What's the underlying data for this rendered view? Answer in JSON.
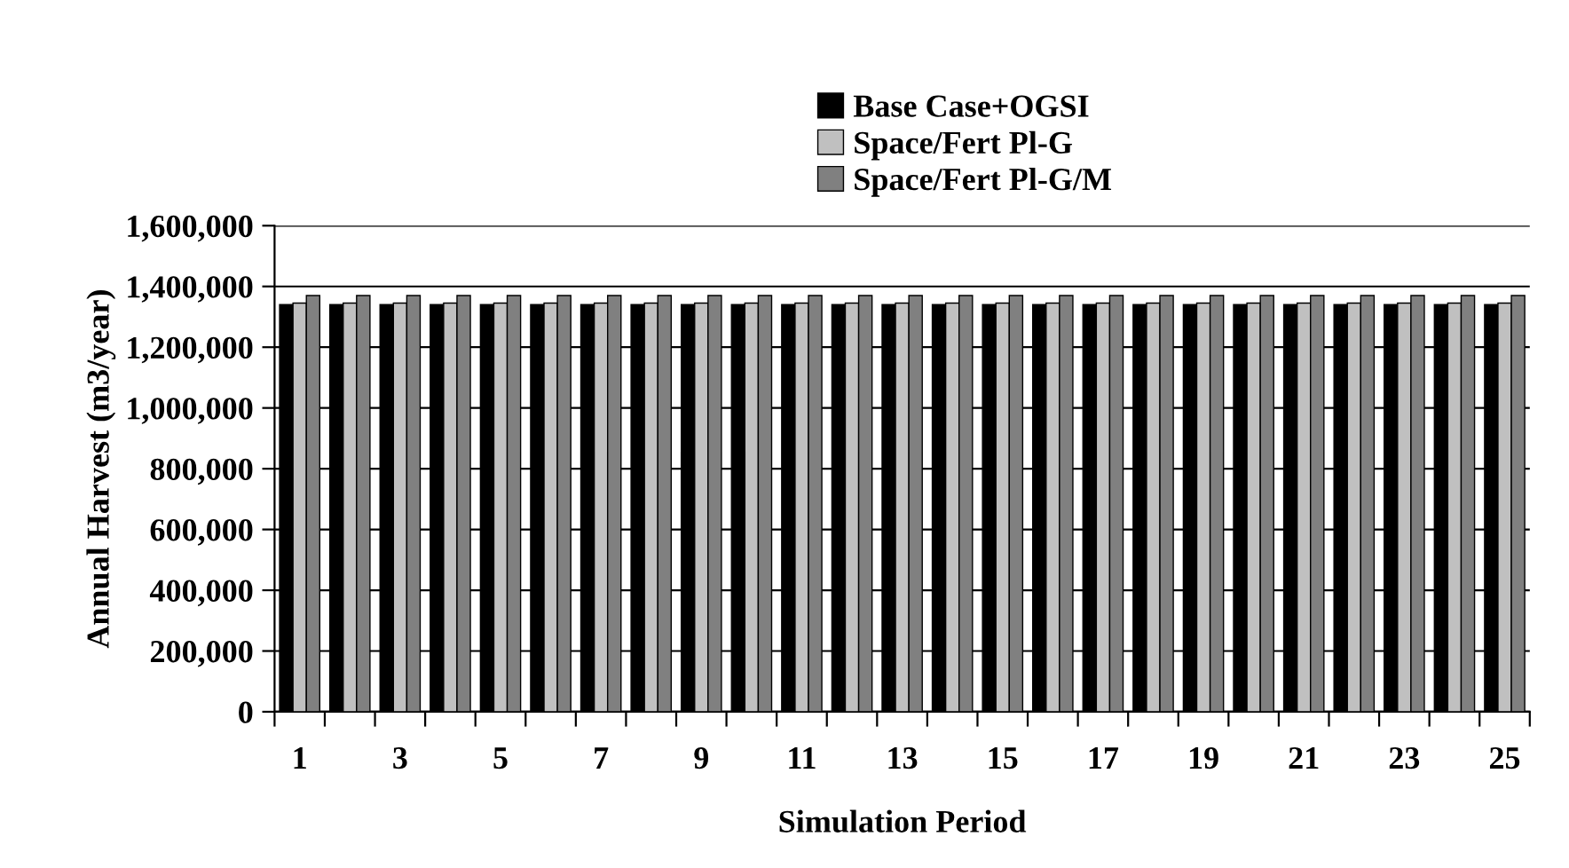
{
  "chart_data": {
    "type": "bar",
    "xlabel": "Simulation Period",
    "ylabel": "Annual Harvest (m3/year)",
    "categories": [
      "1",
      null,
      "3",
      null,
      "5",
      null,
      "7",
      null,
      "9",
      null,
      "11",
      null,
      "13",
      null,
      "15",
      null,
      "17",
      null,
      "19",
      null,
      "21",
      null,
      "23",
      null,
      "25"
    ],
    "series": [
      {
        "name": "Base Case+OGSI",
        "color": "#000000",
        "values": [
          1340000,
          1340000,
          1340000,
          1340000,
          1340000,
          1340000,
          1340000,
          1340000,
          1340000,
          1340000,
          1340000,
          1340000,
          1340000,
          1340000,
          1340000,
          1340000,
          1340000,
          1340000,
          1340000,
          1340000,
          1340000,
          1340000,
          1340000,
          1340000,
          1340000
        ]
      },
      {
        "name": "Space/Fert Pl-G",
        "color": "#c0c0c0",
        "values": [
          1345000,
          1345000,
          1345000,
          1345000,
          1345000,
          1345000,
          1345000,
          1345000,
          1345000,
          1345000,
          1345000,
          1345000,
          1345000,
          1345000,
          1345000,
          1345000,
          1345000,
          1345000,
          1345000,
          1345000,
          1345000,
          1345000,
          1345000,
          1345000,
          1345000
        ]
      },
      {
        "name": "Space/Fert Pl-G/M",
        "color": "#808080",
        "values": [
          1370000,
          1370000,
          1370000,
          1370000,
          1370000,
          1370000,
          1370000,
          1370000,
          1370000,
          1370000,
          1370000,
          1370000,
          1370000,
          1370000,
          1370000,
          1370000,
          1370000,
          1370000,
          1370000,
          1370000,
          1370000,
          1370000,
          1370000,
          1370000,
          1370000
        ]
      }
    ],
    "ylim": [
      0,
      1600000
    ],
    "yticks": [
      {
        "value": 0,
        "label": "0"
      },
      {
        "value": 200000,
        "label": "200,000"
      },
      {
        "value": 400000,
        "label": "400,000"
      },
      {
        "value": 600000,
        "label": "600,000"
      },
      {
        "value": 800000,
        "label": "800,000"
      },
      {
        "value": 1000000,
        "label": "1,000,000"
      },
      {
        "value": 1200000,
        "label": "1,200,000"
      },
      {
        "value": 1400000,
        "label": "1,400,000"
      },
      {
        "value": 1600000,
        "label": "1,600,000"
      }
    ],
    "grid": "y",
    "legend": "top"
  }
}
